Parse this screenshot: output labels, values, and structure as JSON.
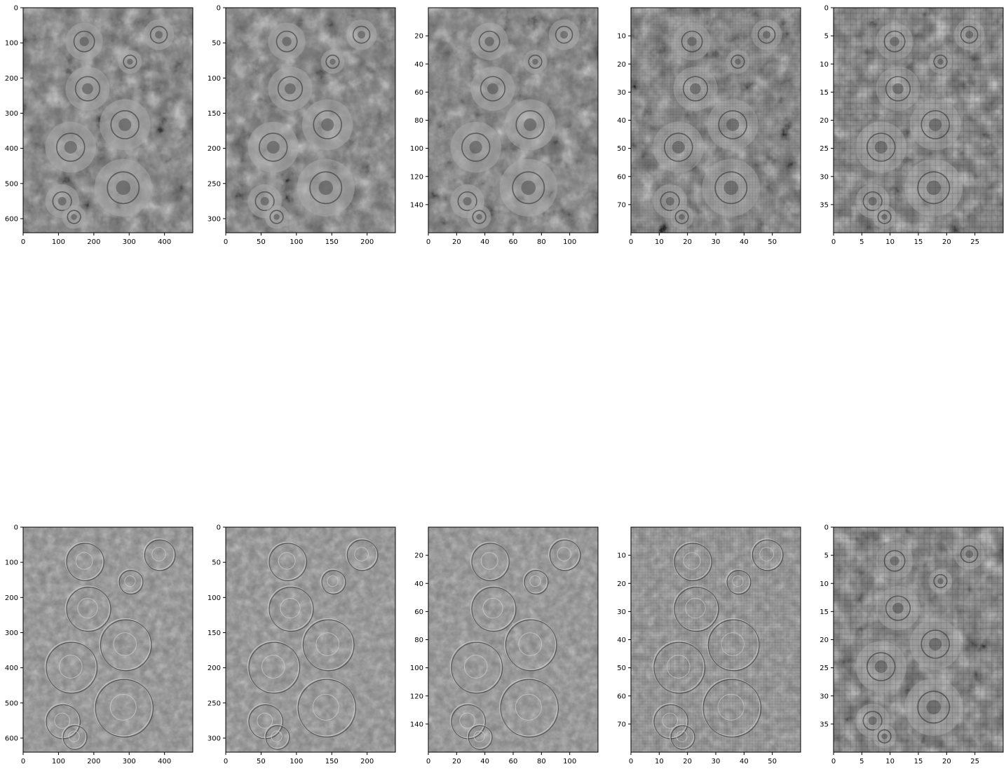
{
  "chart_data": [
    {
      "type": "heatmap",
      "title": "",
      "row": 0,
      "col": 0,
      "content": "grayscale photo of cabbage plants",
      "xlim": [
        0,
        480
      ],
      "ylim": [
        640,
        0
      ],
      "xticks": [
        0,
        100,
        200,
        300,
        400
      ],
      "yticks": [
        0,
        100,
        200,
        300,
        400,
        500,
        600
      ]
    },
    {
      "type": "heatmap",
      "title": "",
      "row": 0,
      "col": 1,
      "content": "grayscale photo of cabbage plants",
      "xlim": [
        0,
        240
      ],
      "ylim": [
        320,
        0
      ],
      "xticks": [
        0,
        50,
        100,
        150,
        200
      ],
      "yticks": [
        0,
        50,
        100,
        150,
        200,
        250,
        300
      ]
    },
    {
      "type": "heatmap",
      "title": "",
      "row": 0,
      "col": 2,
      "content": "grayscale photo of cabbage plants",
      "xlim": [
        0,
        120
      ],
      "ylim": [
        160,
        0
      ],
      "xticks": [
        0,
        20,
        40,
        60,
        80,
        100
      ],
      "yticks": [
        20,
        40,
        60,
        80,
        100,
        120,
        140
      ]
    },
    {
      "type": "heatmap",
      "title": "",
      "row": 0,
      "col": 3,
      "content": "grayscale photo of cabbage plants",
      "xlim": [
        0,
        60
      ],
      "ylim": [
        80,
        0
      ],
      "xticks": [
        0,
        10,
        20,
        30,
        40,
        50
      ],
      "yticks": [
        10,
        20,
        30,
        40,
        50,
        60,
        70
      ]
    },
    {
      "type": "heatmap",
      "title": "",
      "row": 0,
      "col": 4,
      "content": "grayscale photo of cabbage plants",
      "xlim": [
        0,
        30
      ],
      "ylim": [
        40,
        0
      ],
      "xticks": [
        0,
        5,
        10,
        15,
        20,
        25
      ],
      "yticks": [
        0,
        5,
        10,
        15,
        20,
        25,
        30,
        35
      ]
    },
    {
      "type": "heatmap",
      "title": "",
      "row": 1,
      "col": 0,
      "content": "edge-filtered cabbage image",
      "xlim": [
        0,
        480
      ],
      "ylim": [
        640,
        0
      ],
      "xticks": [
        0,
        100,
        200,
        300,
        400
      ],
      "yticks": [
        0,
        100,
        200,
        300,
        400,
        500,
        600
      ]
    },
    {
      "type": "heatmap",
      "title": "",
      "row": 1,
      "col": 1,
      "content": "edge-filtered cabbage image",
      "xlim": [
        0,
        240
      ],
      "ylim": [
        320,
        0
      ],
      "xticks": [
        0,
        50,
        100,
        150,
        200
      ],
      "yticks": [
        0,
        50,
        100,
        150,
        200,
        250,
        300
      ]
    },
    {
      "type": "heatmap",
      "title": "",
      "row": 1,
      "col": 2,
      "content": "edge-filtered cabbage image",
      "xlim": [
        0,
        120
      ],
      "ylim": [
        160,
        0
      ],
      "xticks": [
        0,
        20,
        40,
        60,
        80,
        100
      ],
      "yticks": [
        20,
        40,
        60,
        80,
        100,
        120,
        140
      ]
    },
    {
      "type": "heatmap",
      "title": "",
      "row": 1,
      "col": 3,
      "content": "edge-filtered cabbage image",
      "xlim": [
        0,
        60
      ],
      "ylim": [
        80,
        0
      ],
      "xticks": [
        0,
        10,
        20,
        30,
        40,
        50
      ],
      "yticks": [
        10,
        20,
        30,
        40,
        50,
        60,
        70
      ]
    },
    {
      "type": "heatmap",
      "title": "",
      "row": 1,
      "col": 4,
      "content": "grayscale photo of cabbage plants",
      "xlim": [
        0,
        30
      ],
      "ylim": [
        40,
        0
      ],
      "xticks": [
        0,
        5,
        10,
        15,
        20,
        25
      ],
      "yticks": [
        0,
        5,
        10,
        15,
        20,
        25,
        30,
        35
      ]
    }
  ],
  "colors": {
    "background": "#ffffff",
    "axis": "#000000",
    "photo_base": "#6e6e6e",
    "edge_base": "#7f7f7f"
  }
}
